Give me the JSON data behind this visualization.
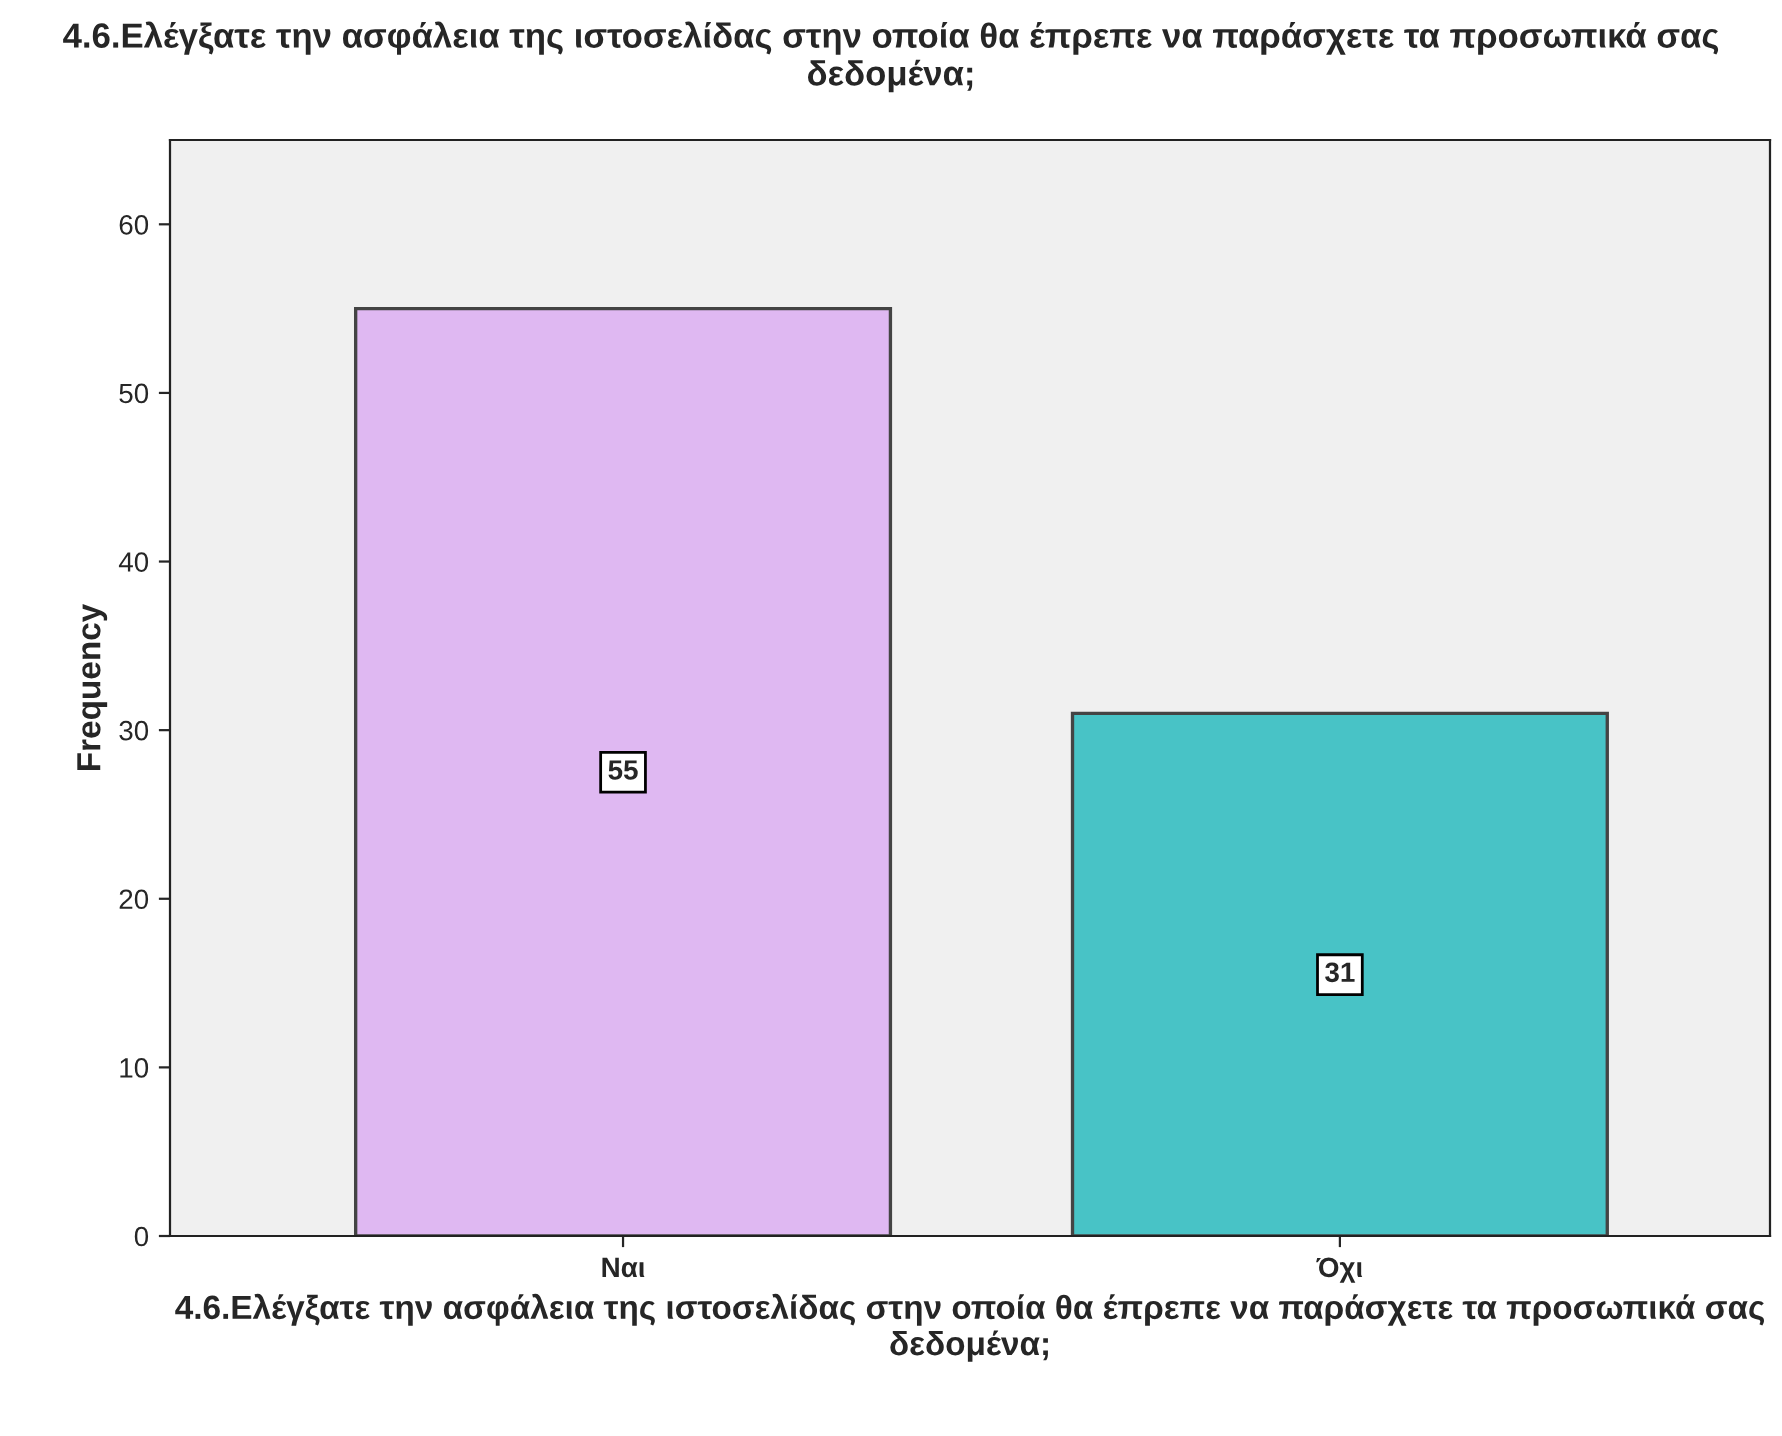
{
  "chart_data": {
    "type": "bar",
    "title": "4.6.Ελέγξατε την ασφάλεια της ιστοσελίδας στην οποία θα έπρεπε να παράσχετε τα προσωπικά σας δεδομένα;",
    "xlabel": "4.6.Ελέγξατε την ασφάλεια της ιστοσελίδας στην οποία θα έπρεπε να παράσχετε τα προσωπικά σας δεδομένα;",
    "ylabel": "Frequency",
    "categories": [
      "Ναι",
      "Όχι"
    ],
    "values": [
      55,
      31
    ],
    "colors": [
      "#dfb8f2",
      "#48c3c6"
    ],
    "ylim": [
      0,
      65
    ],
    "yticks": [
      0,
      10,
      20,
      30,
      40,
      50,
      60
    ],
    "data_labels": true,
    "grid": false,
    "legend": false
  }
}
